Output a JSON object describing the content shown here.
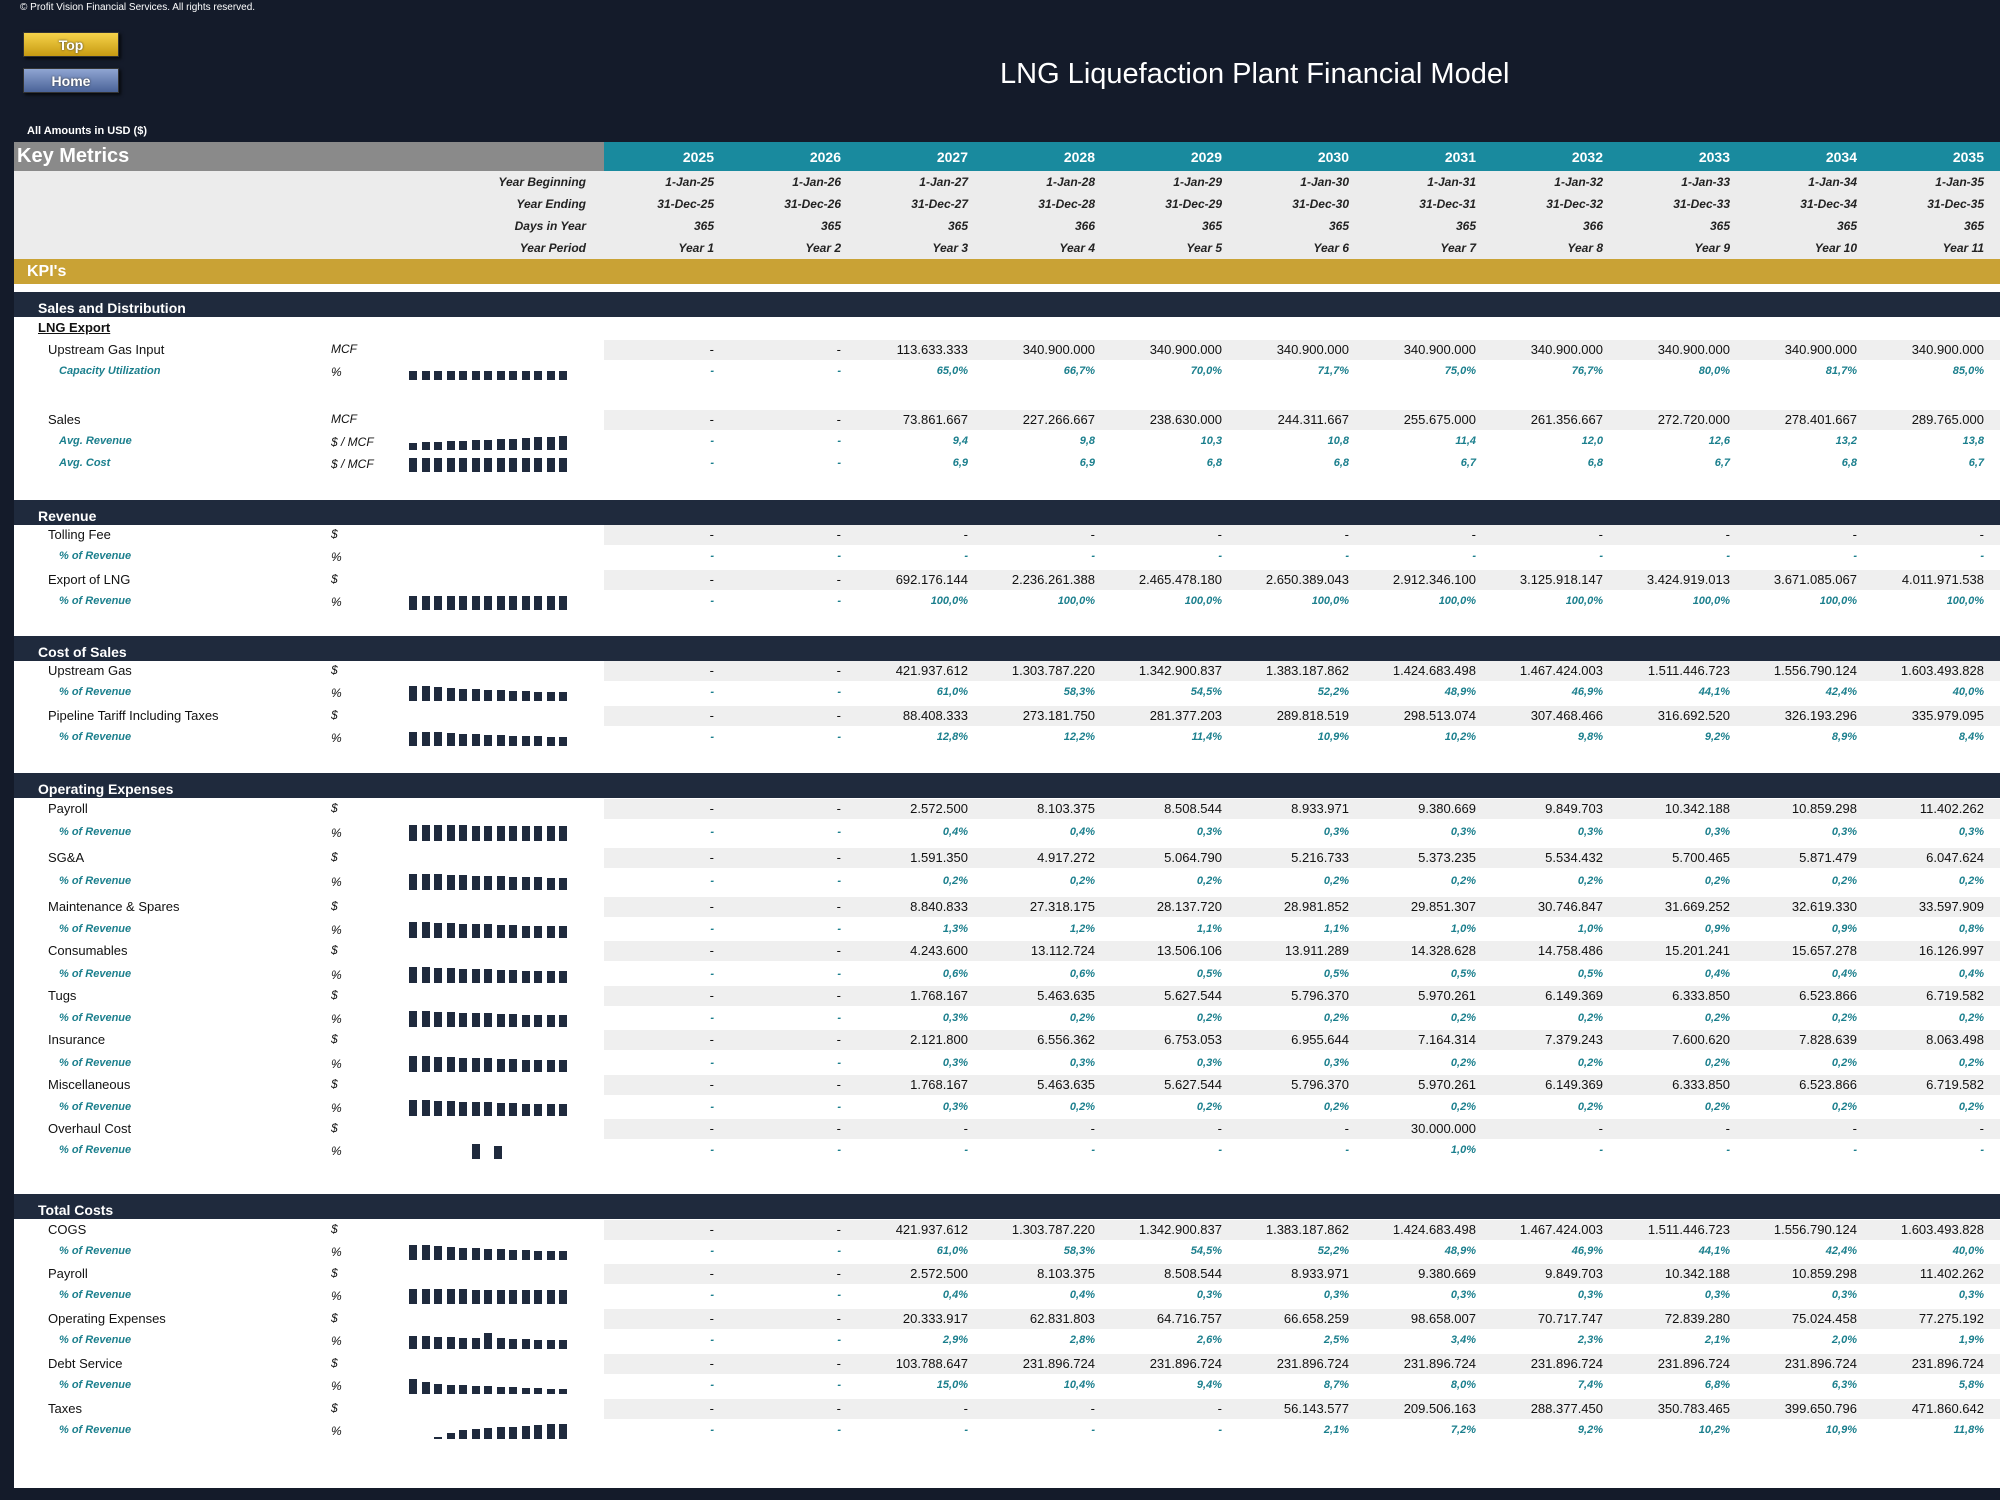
{
  "copyright": "© Profit Vision Financial Services. All rights reserved.",
  "buttons": {
    "top": "Top",
    "home": "Home"
  },
  "title": "LNG Liquefaction Plant Financial Model",
  "amounts_note": "All Amounts in  USD ($)",
  "key_metrics_label": "Key Metrics",
  "kpi_label": "KPI's",
  "years": [
    "2025",
    "2026",
    "2027",
    "2028",
    "2029",
    "2030",
    "2031",
    "2032",
    "2033",
    "2034",
    "2035"
  ],
  "date_rows": [
    {
      "label": "Year Beginning",
      "values": [
        "1-Jan-25",
        "1-Jan-26",
        "1-Jan-27",
        "1-Jan-28",
        "1-Jan-29",
        "1-Jan-30",
        "1-Jan-31",
        "1-Jan-32",
        "1-Jan-33",
        "1-Jan-34",
        "1-Jan-35"
      ]
    },
    {
      "label": "Year Ending",
      "values": [
        "31-Dec-25",
        "31-Dec-26",
        "31-Dec-27",
        "31-Dec-28",
        "31-Dec-29",
        "31-Dec-30",
        "31-Dec-31",
        "31-Dec-32",
        "31-Dec-33",
        "31-Dec-34",
        "31-Dec-35"
      ]
    },
    {
      "label": "Days in Year",
      "values": [
        "365",
        "365",
        "365",
        "366",
        "365",
        "365",
        "365",
        "366",
        "365",
        "365",
        "365"
      ]
    },
    {
      "label": "Year Period",
      "values": [
        "Year 1",
        "Year 2",
        "Year 3",
        "Year 4",
        "Year 5",
        "Year 6",
        "Year 7",
        "Year 8",
        "Year 9",
        "Year 10",
        "Year 11"
      ]
    }
  ],
  "sections": [
    {
      "title": "Sales and Distribution"
    },
    {
      "title": "Revenue"
    },
    {
      "title": "Cost of Sales"
    },
    {
      "title": "Operating Expenses"
    },
    {
      "title": "Total Costs"
    }
  ],
  "lng_export_label": "LNG Export",
  "rows": [
    {
      "label": "Upstream Gas Input",
      "unit": "MCF",
      "type": "val",
      "values": [
        "-",
        "-",
        "113.633.333",
        "340.900.000",
        "340.900.000",
        "340.900.000",
        "340.900.000",
        "340.900.000",
        "340.900.000",
        "340.900.000",
        "340.900.000"
      ]
    },
    {
      "label": "Capacity Utilization",
      "unit": "%",
      "type": "pct",
      "spark": [
        9,
        9,
        9,
        9,
        9,
        9,
        9,
        9,
        9,
        9,
        9,
        9,
        9
      ],
      "values": [
        "-",
        "-",
        "65,0%",
        "66,7%",
        "70,0%",
        "71,7%",
        "75,0%",
        "76,7%",
        "80,0%",
        "81,7%",
        "85,0%"
      ]
    },
    {
      "label": "Sales",
      "unit": "MCF",
      "type": "val",
      "values": [
        "-",
        "-",
        "73.861.667",
        "227.266.667",
        "238.630.000",
        "244.311.667",
        "255.675.000",
        "261.356.667",
        "272.720.000",
        "278.401.667",
        "289.765.000"
      ]
    },
    {
      "label": "Avg. Revenue",
      "unit": "$ / MCF",
      "type": "pct",
      "spark": [
        7,
        8,
        8,
        9,
        9,
        10,
        10,
        11,
        11,
        12,
        13,
        13,
        14
      ],
      "values": [
        "-",
        "-",
        "9,4",
        "9,8",
        "10,3",
        "10,8",
        "11,4",
        "12,0",
        "12,6",
        "13,2",
        "13,8"
      ]
    },
    {
      "label": "Avg. Cost",
      "unit": "$ / MCF",
      "type": "pct",
      "spark": [
        14,
        14,
        14,
        14,
        14,
        14,
        14,
        14,
        14,
        14,
        14,
        14,
        14
      ],
      "values": [
        "-",
        "-",
        "6,9",
        "6,9",
        "6,8",
        "6,8",
        "6,7",
        "6,8",
        "6,7",
        "6,8",
        "6,7"
      ]
    },
    {
      "label": "Tolling Fee",
      "unit": "$",
      "type": "val",
      "values": [
        "-",
        "-",
        "-",
        "-",
        "-",
        "-",
        "-",
        "-",
        "-",
        "-",
        "-"
      ]
    },
    {
      "label": "% of Revenue",
      "unit": "%",
      "type": "pct",
      "values": [
        "-",
        "-",
        "-",
        "-",
        "-",
        "-",
        "-",
        "-",
        "-",
        "-",
        "-"
      ]
    },
    {
      "label": "Export of LNG",
      "unit": "$",
      "type": "val",
      "values": [
        "-",
        "-",
        "692.176.144",
        "2.236.261.388",
        "2.465.478.180",
        "2.650.389.043",
        "2.912.346.100",
        "3.125.918.147",
        "3.424.919.013",
        "3.671.085.067",
        "4.011.971.538"
      ]
    },
    {
      "label": "% of Revenue",
      "unit": "%",
      "type": "pct",
      "spark": [
        14,
        14,
        14,
        14,
        14,
        14,
        14,
        14,
        14,
        14,
        14,
        14,
        14
      ],
      "values": [
        "-",
        "-",
        "100,0%",
        "100,0%",
        "100,0%",
        "100,0%",
        "100,0%",
        "100,0%",
        "100,0%",
        "100,0%",
        "100,0%"
      ]
    },
    {
      "label": "Upstream Gas",
      "unit": "$",
      "type": "val",
      "values": [
        "-",
        "-",
        "421.937.612",
        "1.303.787.220",
        "1.342.900.837",
        "1.383.187.862",
        "1.424.683.498",
        "1.467.424.003",
        "1.511.446.723",
        "1.556.790.124",
        "1.603.493.828"
      ]
    },
    {
      "label": "% of Revenue",
      "unit": "%",
      "type": "pct",
      "spark": [
        15,
        15,
        14,
        13,
        12,
        12,
        11,
        11,
        10,
        10,
        9,
        9,
        9
      ],
      "values": [
        "-",
        "-",
        "61,0%",
        "58,3%",
        "54,5%",
        "52,2%",
        "48,9%",
        "46,9%",
        "44,1%",
        "42,4%",
        "40,0%"
      ]
    },
    {
      "label": "Pipeline Tariff Including Taxes",
      "unit": "$",
      "type": "val",
      "values": [
        "-",
        "-",
        "88.408.333",
        "273.181.750",
        "281.377.203",
        "289.818.519",
        "298.513.074",
        "307.468.466",
        "316.692.520",
        "326.193.296",
        "335.979.095"
      ]
    },
    {
      "label": "% of Revenue",
      "unit": "%",
      "type": "pct",
      "spark": [
        14,
        14,
        14,
        13,
        12,
        12,
        11,
        11,
        10,
        10,
        10,
        9,
        9
      ],
      "values": [
        "-",
        "-",
        "12,8%",
        "12,2%",
        "11,4%",
        "10,9%",
        "10,2%",
        "9,8%",
        "9,2%",
        "8,9%",
        "8,4%"
      ]
    },
    {
      "label": "Payroll",
      "unit": "$",
      "type": "val",
      "values": [
        "-",
        "-",
        "2.572.500",
        "8.103.375",
        "8.508.544",
        "8.933.971",
        "9.380.669",
        "9.849.703",
        "10.342.188",
        "10.859.298",
        "11.402.262"
      ]
    },
    {
      "label": "% of Revenue",
      "unit": "%",
      "type": "pct",
      "spark": [
        16,
        16,
        16,
        16,
        16,
        15,
        15,
        15,
        15,
        15,
        15,
        15,
        15
      ],
      "values": [
        "-",
        "-",
        "0,4%",
        "0,4%",
        "0,3%",
        "0,3%",
        "0,3%",
        "0,3%",
        "0,3%",
        "0,3%",
        "0,3%"
      ]
    },
    {
      "label": "SG&A",
      "unit": "$",
      "type": "val",
      "values": [
        "-",
        "-",
        "1.591.350",
        "4.917.272",
        "5.064.790",
        "5.216.733",
        "5.373.235",
        "5.534.432",
        "5.700.465",
        "5.871.479",
        "6.047.624"
      ]
    },
    {
      "label": "% of Revenue",
      "unit": "%",
      "type": "pct",
      "spark": [
        16,
        16,
        16,
        15,
        15,
        14,
        14,
        14,
        13,
        13,
        13,
        12,
        12
      ],
      "values": [
        "-",
        "-",
        "0,2%",
        "0,2%",
        "0,2%",
        "0,2%",
        "0,2%",
        "0,2%",
        "0,2%",
        "0,2%",
        "0,2%"
      ]
    },
    {
      "label": "Maintenance & Spares",
      "unit": "$",
      "type": "val",
      "values": [
        "-",
        "-",
        "8.840.833",
        "27.318.175",
        "28.137.720",
        "28.981.852",
        "29.851.307",
        "30.746.847",
        "31.669.252",
        "32.619.330",
        "33.597.909"
      ]
    },
    {
      "label": "% of Revenue",
      "unit": "%",
      "type": "pct",
      "spark": [
        16,
        16,
        15,
        15,
        14,
        14,
        14,
        13,
        13,
        12,
        12,
        12,
        12
      ],
      "values": [
        "-",
        "-",
        "1,3%",
        "1,2%",
        "1,1%",
        "1,1%",
        "1,0%",
        "1,0%",
        "0,9%",
        "0,9%",
        "0,8%"
      ]
    },
    {
      "label": "Consumables",
      "unit": "$",
      "type": "val",
      "values": [
        "-",
        "-",
        "4.243.600",
        "13.112.724",
        "13.506.106",
        "13.911.289",
        "14.328.628",
        "14.758.486",
        "15.201.241",
        "15.657.278",
        "16.126.997"
      ]
    },
    {
      "label": "% of Revenue",
      "unit": "%",
      "type": "pct",
      "spark": [
        16,
        16,
        15,
        15,
        14,
        14,
        14,
        13,
        13,
        12,
        12,
        12,
        12
      ],
      "values": [
        "-",
        "-",
        "0,6%",
        "0,6%",
        "0,5%",
        "0,5%",
        "0,5%",
        "0,5%",
        "0,4%",
        "0,4%",
        "0,4%"
      ]
    },
    {
      "label": "Tugs",
      "unit": "$",
      "type": "val",
      "values": [
        "-",
        "-",
        "1.768.167",
        "5.463.635",
        "5.627.544",
        "5.796.370",
        "5.970.261",
        "6.149.369",
        "6.333.850",
        "6.523.866",
        "6.719.582"
      ]
    },
    {
      "label": "% of Revenue",
      "unit": "%",
      "type": "pct",
      "spark": [
        16,
        16,
        15,
        15,
        14,
        14,
        14,
        13,
        13,
        12,
        12,
        12,
        12
      ],
      "values": [
        "-",
        "-",
        "0,3%",
        "0,2%",
        "0,2%",
        "0,2%",
        "0,2%",
        "0,2%",
        "0,2%",
        "0,2%",
        "0,2%"
      ]
    },
    {
      "label": "Insurance",
      "unit": "$",
      "type": "val",
      "values": [
        "-",
        "-",
        "2.121.800",
        "6.556.362",
        "6.753.053",
        "6.955.644",
        "7.164.314",
        "7.379.243",
        "7.600.620",
        "7.828.639",
        "8.063.498"
      ]
    },
    {
      "label": "% of Revenue",
      "unit": "%",
      "type": "pct",
      "spark": [
        16,
        16,
        15,
        15,
        14,
        14,
        14,
        13,
        13,
        12,
        12,
        12,
        12
      ],
      "values": [
        "-",
        "-",
        "0,3%",
        "0,3%",
        "0,3%",
        "0,3%",
        "0,2%",
        "0,2%",
        "0,2%",
        "0,2%",
        "0,2%"
      ]
    },
    {
      "label": "Miscellaneous",
      "unit": "$",
      "type": "val",
      "values": [
        "-",
        "-",
        "1.768.167",
        "5.463.635",
        "5.627.544",
        "5.796.370",
        "5.970.261",
        "6.149.369",
        "6.333.850",
        "6.523.866",
        "6.719.582"
      ]
    },
    {
      "label": "% of Revenue",
      "unit": "%",
      "type": "pct",
      "spark": [
        16,
        16,
        15,
        15,
        14,
        14,
        14,
        13,
        13,
        12,
        12,
        12,
        12
      ],
      "values": [
        "-",
        "-",
        "0,3%",
        "0,2%",
        "0,2%",
        "0,2%",
        "0,2%",
        "0,2%",
        "0,2%",
        "0,2%",
        "0,2%"
      ]
    },
    {
      "label": "Overhaul Cost",
      "unit": "$",
      "type": "val",
      "values": [
        "-",
        "-",
        "-",
        "-",
        "-",
        "-",
        "30.000.000",
        "-",
        "-",
        "-",
        "-"
      ]
    },
    {
      "label": "% of Revenue",
      "unit": "%",
      "type": "pct",
      "spark": [
        0,
        0,
        0,
        0,
        0,
        15,
        0,
        0,
        0,
        0,
        0,
        0,
        0
      ],
      "spark2": [
        0,
        0,
        0,
        0,
        0,
        0,
        0,
        0,
        0,
        0,
        13,
        0,
        0
      ],
      "values": [
        "-",
        "-",
        "-",
        "-",
        "-",
        "-",
        "1,0%",
        "-",
        "-",
        "-",
        "-"
      ]
    },
    {
      "label": "COGS",
      "unit": "$",
      "type": "val",
      "values": [
        "-",
        "-",
        "421.937.612",
        "1.303.787.220",
        "1.342.900.837",
        "1.383.187.862",
        "1.424.683.498",
        "1.467.424.003",
        "1.511.446.723",
        "1.556.790.124",
        "1.603.493.828"
      ]
    },
    {
      "label": "% of Revenue",
      "unit": "%",
      "type": "pct",
      "spark": [
        15,
        15,
        14,
        13,
        12,
        12,
        11,
        11,
        10,
        10,
        9,
        9,
        9
      ],
      "values": [
        "-",
        "-",
        "61,0%",
        "58,3%",
        "54,5%",
        "52,2%",
        "48,9%",
        "46,9%",
        "44,1%",
        "42,4%",
        "40,0%"
      ]
    },
    {
      "label": "Payroll",
      "unit": "$",
      "type": "val",
      "values": [
        "-",
        "-",
        "2.572.500",
        "8.103.375",
        "8.508.544",
        "8.933.971",
        "9.380.669",
        "9.849.703",
        "10.342.188",
        "10.859.298",
        "11.402.262"
      ]
    },
    {
      "label": "% of Revenue",
      "unit": "%",
      "type": "pct",
      "spark": [
        15,
        15,
        15,
        15,
        15,
        14,
        14,
        14,
        14,
        14,
        14,
        14,
        14
      ],
      "values": [
        "-",
        "-",
        "0,4%",
        "0,4%",
        "0,3%",
        "0,3%",
        "0,3%",
        "0,3%",
        "0,3%",
        "0,3%",
        "0,3%"
      ]
    },
    {
      "label": "Operating Expenses",
      "unit": "$",
      "type": "val",
      "values": [
        "-",
        "-",
        "20.333.917",
        "62.831.803",
        "64.716.757",
        "66.658.259",
        "98.658.007",
        "70.717.747",
        "72.839.280",
        "75.024.458",
        "77.275.192"
      ]
    },
    {
      "label": "% of Revenue",
      "unit": "%",
      "type": "pct",
      "spark": [
        13,
        13,
        12,
        12,
        11,
        11,
        16,
        11,
        10,
        10,
        9,
        9,
        9
      ],
      "values": [
        "-",
        "-",
        "2,9%",
        "2,8%",
        "2,6%",
        "2,5%",
        "3,4%",
        "2,3%",
        "2,1%",
        "2,0%",
        "1,9%"
      ]
    },
    {
      "label": "Debt Service",
      "unit": "$",
      "type": "val",
      "values": [
        "-",
        "-",
        "103.788.647",
        "231.896.724",
        "231.896.724",
        "231.896.724",
        "231.896.724",
        "231.896.724",
        "231.896.724",
        "231.896.724",
        "231.896.724"
      ]
    },
    {
      "label": "% of Revenue",
      "unit": "%",
      "type": "pct",
      "spark": [
        15,
        12,
        10,
        9,
        9,
        8,
        8,
        7,
        7,
        6,
        6,
        5,
        5
      ],
      "values": [
        "-",
        "-",
        "15,0%",
        "10,4%",
        "9,4%",
        "8,7%",
        "8,0%",
        "7,4%",
        "6,8%",
        "6,3%",
        "5,8%"
      ]
    },
    {
      "label": "Taxes",
      "unit": "$",
      "type": "val",
      "values": [
        "-",
        "-",
        "-",
        "-",
        "-",
        "56.143.577",
        "209.506.163",
        "288.377.450",
        "350.783.465",
        "399.650.796",
        "471.860.642"
      ]
    },
    {
      "label": "% of Revenue",
      "unit": "%",
      "type": "pct",
      "spark": [
        0,
        0,
        2,
        6,
        9,
        10,
        11,
        12,
        12,
        13,
        14,
        15,
        15
      ],
      "values": [
        "-",
        "-",
        "-",
        "-",
        "-",
        "2,1%",
        "7,2%",
        "9,2%",
        "10,2%",
        "10,9%",
        "11,8%"
      ]
    }
  ]
}
